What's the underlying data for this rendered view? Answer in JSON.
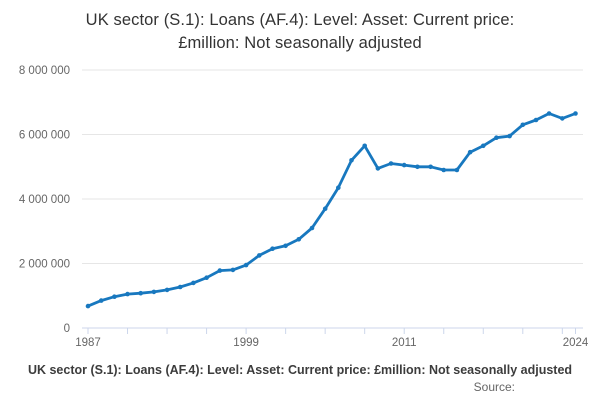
{
  "chart_data": {
    "type": "line",
    "title": "UK sector (S.1): Loans (AF.4): Level: Asset: Current price: £million: Not seasonally adjusted",
    "title_lines": [
      "UK sector (S.1): Loans (AF.4): Level: Asset: Current price:",
      "£million: Not seasonally adjusted"
    ],
    "xlabel": "",
    "ylabel": "",
    "xlim": [
      1987,
      2024
    ],
    "ylim": [
      0,
      8000000
    ],
    "grid": true,
    "legend_position": "bottom",
    "series": [
      {
        "name": "UK sector (S.1): Loans (AF.4): Level: Asset: Current price: £million: Not seasonally adjusted",
        "color": "#1878bf",
        "x": [
          1987,
          1988,
          1989,
          1990,
          1991,
          1992,
          1993,
          1994,
          1995,
          1996,
          1997,
          1998,
          1999,
          2000,
          2001,
          2002,
          2003,
          2004,
          2005,
          2006,
          2007,
          2008,
          2009,
          2010,
          2011,
          2012,
          2013,
          2014,
          2015,
          2016,
          2017,
          2018,
          2019,
          2020,
          2021,
          2022,
          2023,
          2024
        ],
        "values": [
          680000,
          850000,
          970000,
          1050000,
          1080000,
          1120000,
          1180000,
          1270000,
          1400000,
          1560000,
          1780000,
          1800000,
          1950000,
          2250000,
          2460000,
          2550000,
          2750000,
          3100000,
          3700000,
          4350000,
          5200000,
          5650000,
          4950000,
          5100000,
          5050000,
          5000000,
          5000000,
          4900000,
          4900000,
          5450000,
          5650000,
          5900000,
          5950000,
          6300000,
          6450000,
          6650000,
          6500000,
          6650000
        ]
      }
    ],
    "yticks": [
      {
        "value": 0,
        "label": "0"
      },
      {
        "value": 2000000,
        "label": "2 000 000"
      },
      {
        "value": 4000000,
        "label": "4 000 000"
      },
      {
        "value": 6000000,
        "label": "6 000 000"
      },
      {
        "value": 8000000,
        "label": "8 000 000"
      }
    ],
    "xtick_years": [
      1987,
      1990,
      1993,
      1996,
      1999,
      2002,
      2005,
      2008,
      2011,
      2014,
      2017,
      2020,
      2023,
      2024
    ],
    "xtick_labels": [
      {
        "year": 1987,
        "label": "1987"
      },
      {
        "year": 1999,
        "label": "1999"
      },
      {
        "year": 2011,
        "label": "2011"
      },
      {
        "year": 2024,
        "label": "2024"
      }
    ],
    "colors": {
      "line": "#1878bf",
      "grid": "#e6e6e6",
      "axis": "#ccd6eb",
      "tick_label": "#666666",
      "title": "#333333"
    }
  },
  "footer": {
    "legend": "UK sector (S.1): Loans (AF.4): Level: Asset: Current price: £million: Not seasonally adjusted",
    "source_label": "Source:"
  }
}
